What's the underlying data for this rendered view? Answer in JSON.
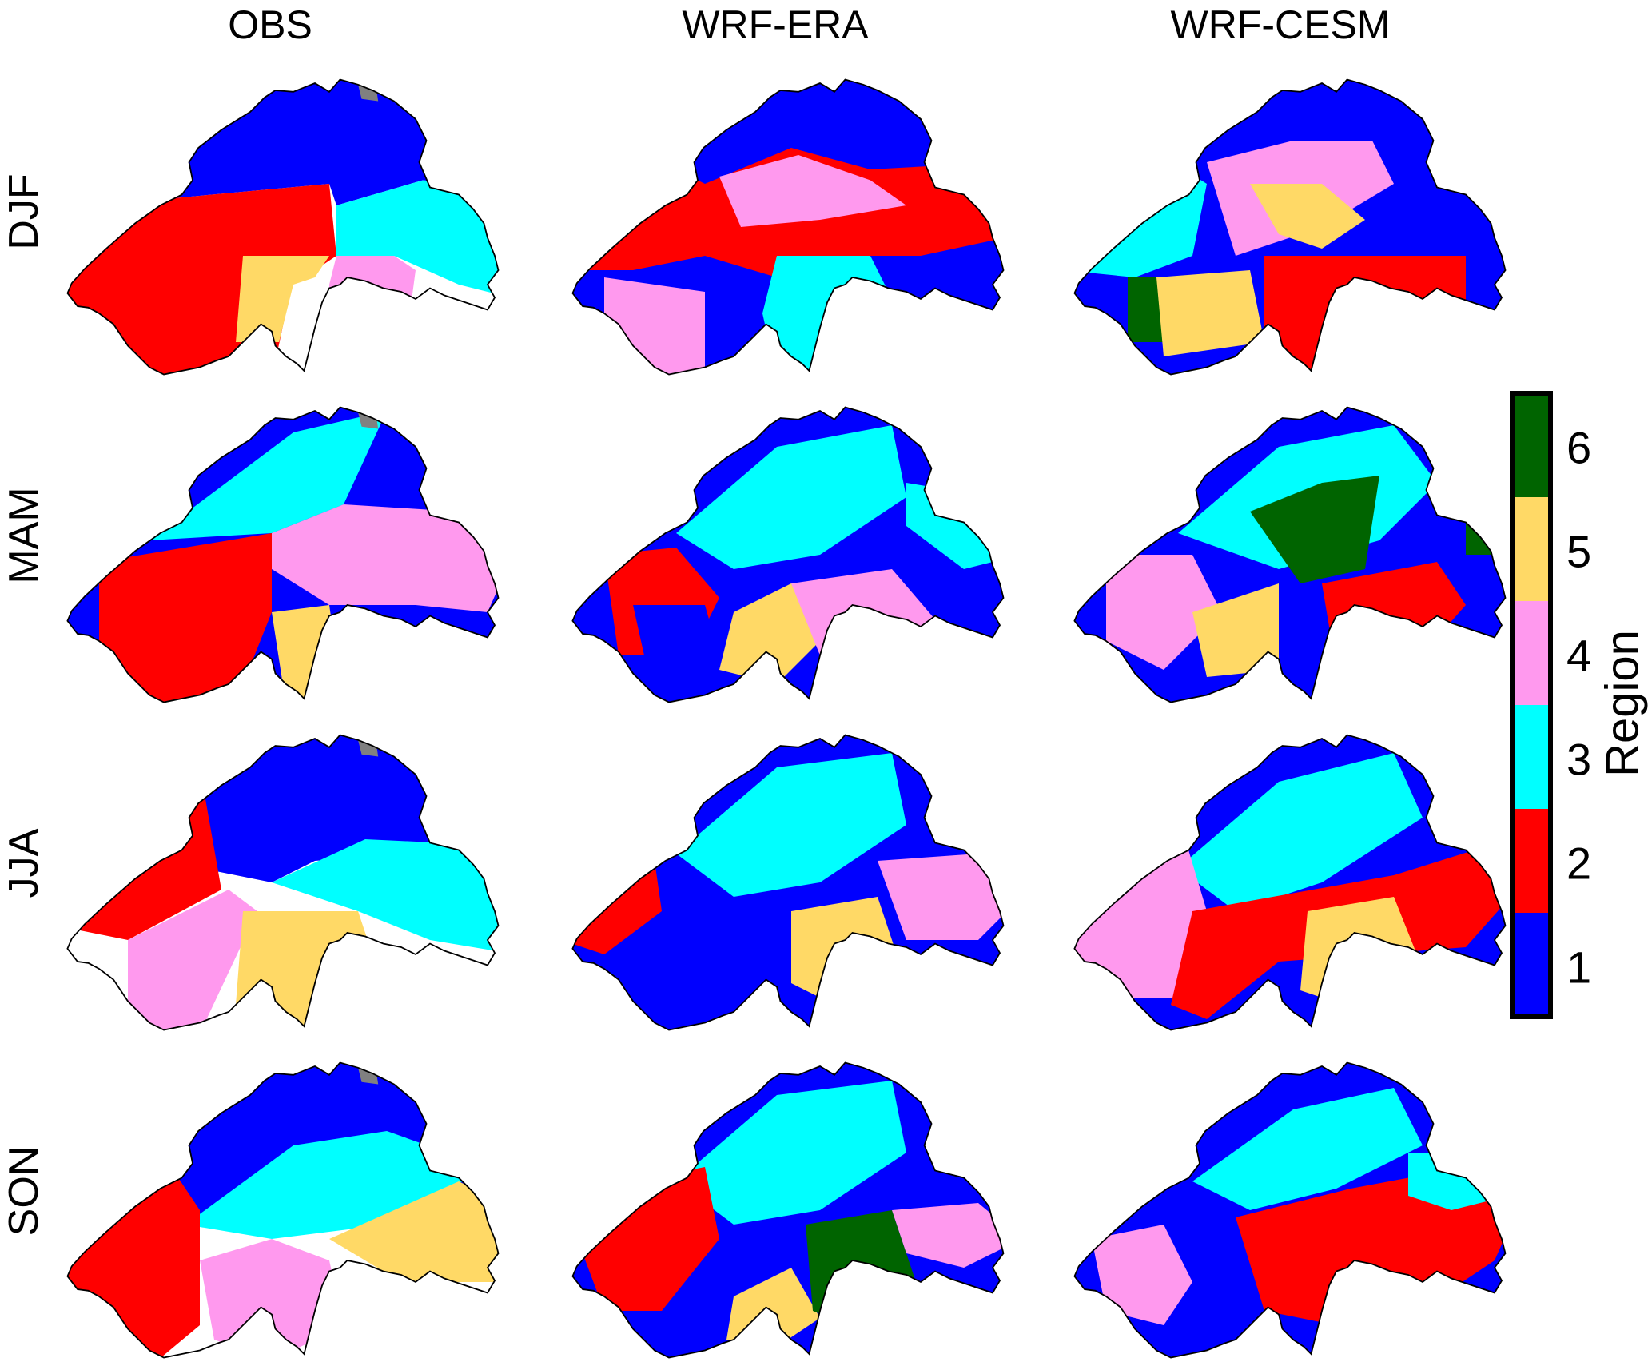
{
  "columns": [
    "OBS",
    "WRF-ERA",
    "WRF-CESM"
  ],
  "rows": [
    "DJF",
    "MAM",
    "JJA",
    "SON"
  ],
  "colorbar": {
    "label": "Region",
    "ticks": [
      "1",
      "2",
      "3",
      "4",
      "5",
      "6"
    ],
    "colors": [
      "#0000ff",
      "#ff0000",
      "#00ffff",
      "#ff99ee",
      "#ffd966",
      "#006400"
    ]
  },
  "nodata_color": "#808080",
  "maps": [
    [
      "band",
      "band",
      "band"
    ],
    [
      "band",
      "band",
      "band"
    ],
    [
      "band",
      "band",
      "band"
    ],
    [
      "band",
      "band",
      "band"
    ]
  ]
}
